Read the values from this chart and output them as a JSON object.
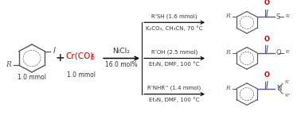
{
  "bg_color": "#f0f0eb",
  "aryl_iodide_label": "1.0 mmol",
  "cr_label": "1.0 mmol",
  "catalyst": "NiCl₂",
  "catalyst_loading": "16.0 mol%",
  "conditions": [
    {
      "reagent": "R’SH (1.6 mmol)",
      "base_solvent": "K₂CO₃, CH₃CN, 70 °C",
      "product_heteroatom": "S"
    },
    {
      "reagent": "R’OH (2.5 mmol)",
      "base_solvent": "Et₃N, DMF, 100 °C",
      "product_heteroatom": "O"
    },
    {
      "reagent": "R’NHR’’ (1.4 mmol)",
      "base_solvent": "Et₃N, DMF, 100 °C",
      "product_heteroatom": "N"
    }
  ],
  "cr_color": "#cc0000",
  "bond_color": "#5555aa",
  "carbonyl_color": "#cc0000",
  "structure_color": "#555555",
  "text_color": "#333333",
  "white_bg": "#ffffff"
}
